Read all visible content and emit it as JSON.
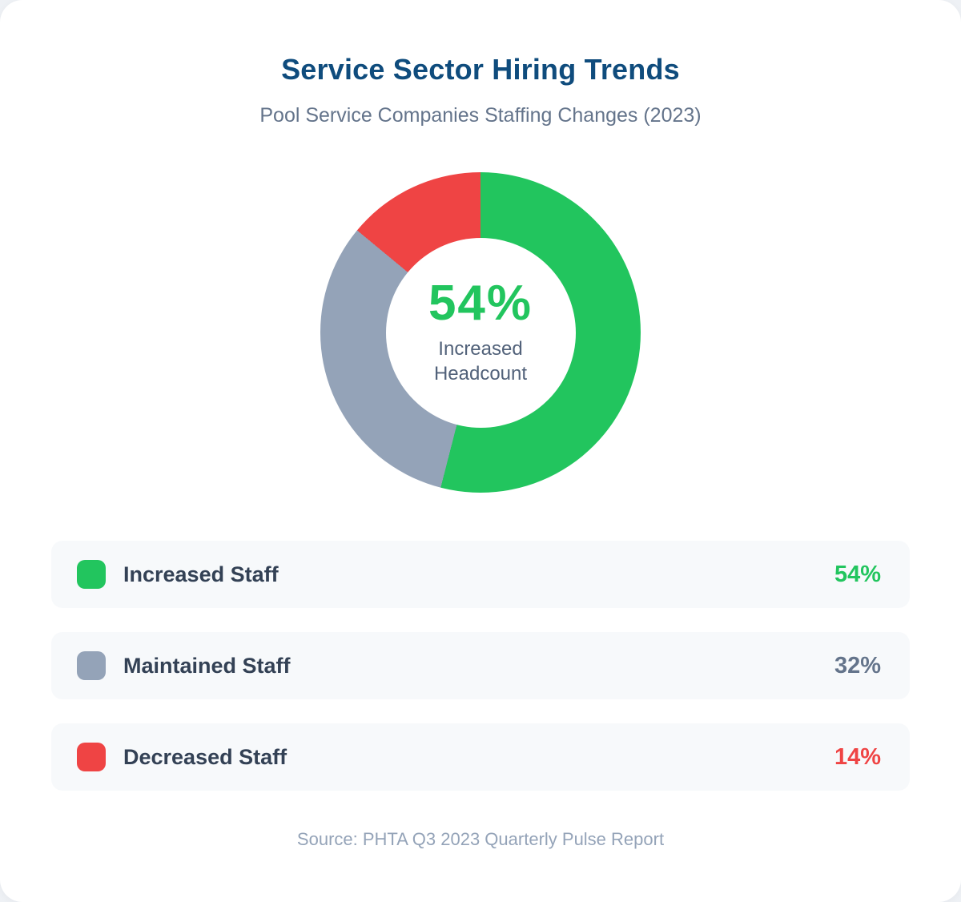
{
  "card": {
    "title": "Service Sector Hiring Trends",
    "subtitle": "Pool Service Companies Staffing Changes (2023)",
    "source": "Source: PHTA Q3 2023 Quarterly Pulse Report"
  },
  "donut_center": {
    "value": "54%",
    "label_line1": "Increased",
    "label_line2": "Headcount",
    "value_color": "#22c55e",
    "label_color": "#52627a"
  },
  "legend": [
    {
      "label": "Increased Staff",
      "value": "54%",
      "swatch_color": "#22c55e",
      "value_color": "#22c55e"
    },
    {
      "label": "Maintained Staff",
      "value": "32%",
      "swatch_color": "#94a3b8",
      "value_color": "#64748b"
    },
    {
      "label": "Decreased Staff",
      "value": "14%",
      "swatch_color": "#ef4444",
      "value_color": "#ef4444"
    }
  ],
  "colors": {
    "title": "#0f4c7d",
    "subtitle": "#64748b",
    "card_background": "#ffffff",
    "page_background": "#eef1f5",
    "row_background": "#f7f9fb",
    "source_text": "#94a3b8"
  },
  "chart_data": {
    "type": "pie",
    "donut": true,
    "title": "Service Sector Hiring Trends",
    "subtitle": "Pool Service Companies Staffing Changes (2023)",
    "categories": [
      "Increased Staff",
      "Maintained Staff",
      "Decreased Staff"
    ],
    "values": [
      54,
      32,
      14
    ],
    "unit": "%",
    "colors": [
      "#22c55e",
      "#94a3b8",
      "#ef4444"
    ],
    "start_angle_deg": 0,
    "direction": "clockwise",
    "center_text": "54% Increased Headcount",
    "legend_position": "bottom",
    "source": "Source: PHTA Q3 2023 Quarterly Pulse Report"
  }
}
